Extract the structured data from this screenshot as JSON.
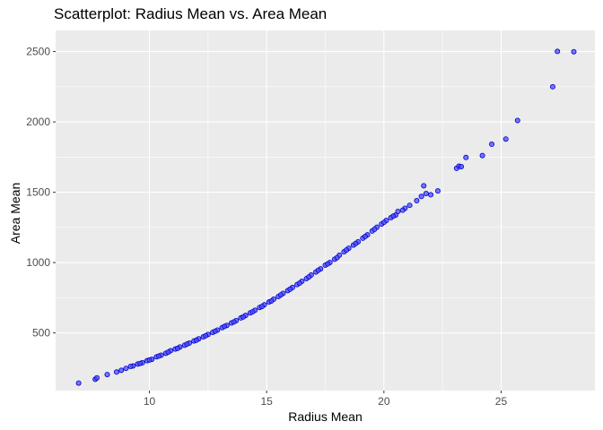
{
  "chart_data": {
    "type": "scatter",
    "title": "Scatterplot: Radius Mean vs. Area Mean",
    "xlabel": "Radius Mean",
    "ylabel": "Area Mean",
    "xlim": [
      6,
      29
    ],
    "ylim": [
      90,
      2650
    ],
    "x_ticks": [
      10,
      15,
      20,
      25
    ],
    "y_ticks": [
      500,
      1000,
      1500,
      2000,
      2500
    ],
    "grid": true,
    "legend": "none",
    "colors": {
      "panel": "#ebebeb",
      "grid": "#ffffff",
      "point_fill": "#4d4dff",
      "point_stroke": "#0000cc"
    },
    "points": [
      [
        6.98,
        143.5
      ],
      [
        7.69,
        170.4
      ],
      [
        7.76,
        181.0
      ],
      [
        8.2,
        203.9
      ],
      [
        8.6,
        221.8
      ],
      [
        8.8,
        234.3
      ],
      [
        9.0,
        248.0
      ],
      [
        9.3,
        265.0
      ],
      [
        9.5,
        278.6
      ],
      [
        9.7,
        288.1
      ],
      [
        9.9,
        302.4
      ],
      [
        10.1,
        312.1
      ],
      [
        10.3,
        330.0
      ],
      [
        10.5,
        341.6
      ],
      [
        10.7,
        355.3
      ],
      [
        10.9,
        373.2
      ],
      [
        11.1,
        385.0
      ],
      [
        11.3,
        399.8
      ],
      [
        11.5,
        412.6
      ],
      [
        11.7,
        427.4
      ],
      [
        11.9,
        443.0
      ],
      [
        12.1,
        457.8
      ],
      [
        12.3,
        472.4
      ],
      [
        12.5,
        489.0
      ],
      [
        12.7,
        504.1
      ],
      [
        12.9,
        520.0
      ],
      [
        13.1,
        537.3
      ],
      [
        13.3,
        553.5
      ],
      [
        13.5,
        571.1
      ],
      [
        13.7,
        587.6
      ],
      [
        13.9,
        606.5
      ],
      [
        14.1,
        623.9
      ],
      [
        14.3,
        642.7
      ],
      [
        14.5,
        660.6
      ],
      [
        14.7,
        680.9
      ],
      [
        14.9,
        699.4
      ],
      [
        15.1,
        719.5
      ],
      [
        15.3,
        739.3
      ],
      [
        15.5,
        759.0
      ],
      [
        15.7,
        781.1
      ],
      [
        15.9,
        801.2
      ],
      [
        16.1,
        822.8
      ],
      [
        16.3,
        843.9
      ],
      [
        16.5,
        866.9
      ],
      [
        16.7,
        886.3
      ],
      [
        16.9,
        911.2
      ],
      [
        17.1,
        933.1
      ],
      [
        17.3,
        955.0
      ],
      [
        17.5,
        981.6
      ],
      [
        17.7,
        1001.0
      ],
      [
        17.9,
        1024.0
      ],
      [
        18.1,
        1052.0
      ],
      [
        18.3,
        1076.0
      ],
      [
        18.5,
        1102.0
      ],
      [
        18.7,
        1124.0
      ],
      [
        18.9,
        1148.0
      ],
      [
        19.1,
        1173.0
      ],
      [
        19.3,
        1197.0
      ],
      [
        19.5,
        1224.0
      ],
      [
        19.7,
        1251.0
      ],
      [
        19.9,
        1274.0
      ],
      [
        20.1,
        1299.0
      ],
      [
        20.3,
        1319.0
      ],
      [
        20.5,
        1337.0
      ],
      [
        20.6,
        1364.0
      ],
      [
        20.9,
        1386.0
      ],
      [
        21.1,
        1407.0
      ],
      [
        21.4,
        1440.0
      ],
      [
        21.6,
        1470.0
      ],
      [
        21.7,
        1546.0
      ],
      [
        21.8,
        1491.0
      ],
      [
        22.0,
        1482.0
      ],
      [
        22.3,
        1509.0
      ],
      [
        23.1,
        1670.0
      ],
      [
        23.2,
        1685.0
      ],
      [
        23.3,
        1682.0
      ],
      [
        23.5,
        1747.0
      ],
      [
        24.2,
        1761.0
      ],
      [
        24.6,
        1841.0
      ],
      [
        25.2,
        1878.0
      ],
      [
        25.7,
        2010.0
      ],
      [
        27.2,
        2250.0
      ],
      [
        27.4,
        2501.0
      ],
      [
        28.1,
        2499.0
      ],
      [
        9.2,
        262.0
      ],
      [
        9.6,
        283.0
      ],
      [
        10.0,
        307.0
      ],
      [
        10.4,
        335.0
      ],
      [
        10.8,
        363.0
      ],
      [
        11.2,
        390.0
      ],
      [
        11.6,
        420.0
      ],
      [
        12.0,
        448.0
      ],
      [
        12.4,
        480.0
      ],
      [
        12.8,
        512.0
      ],
      [
        13.2,
        546.0
      ],
      [
        13.6,
        578.0
      ],
      [
        14.0,
        614.0
      ],
      [
        14.4,
        650.0
      ],
      [
        14.8,
        688.0
      ],
      [
        15.2,
        727.0
      ],
      [
        15.6,
        770.0
      ],
      [
        16.0,
        811.0
      ],
      [
        16.4,
        853.0
      ],
      [
        16.8,
        898.0
      ],
      [
        17.2,
        945.0
      ],
      [
        17.6,
        990.0
      ],
      [
        18.0,
        1035.0
      ],
      [
        18.4,
        1089.0
      ],
      [
        18.8,
        1136.0
      ],
      [
        19.2,
        1185.0
      ],
      [
        19.6,
        1237.0
      ],
      [
        20.0,
        1286.0
      ],
      [
        20.4,
        1330.0
      ],
      [
        20.8,
        1372.0
      ]
    ]
  }
}
